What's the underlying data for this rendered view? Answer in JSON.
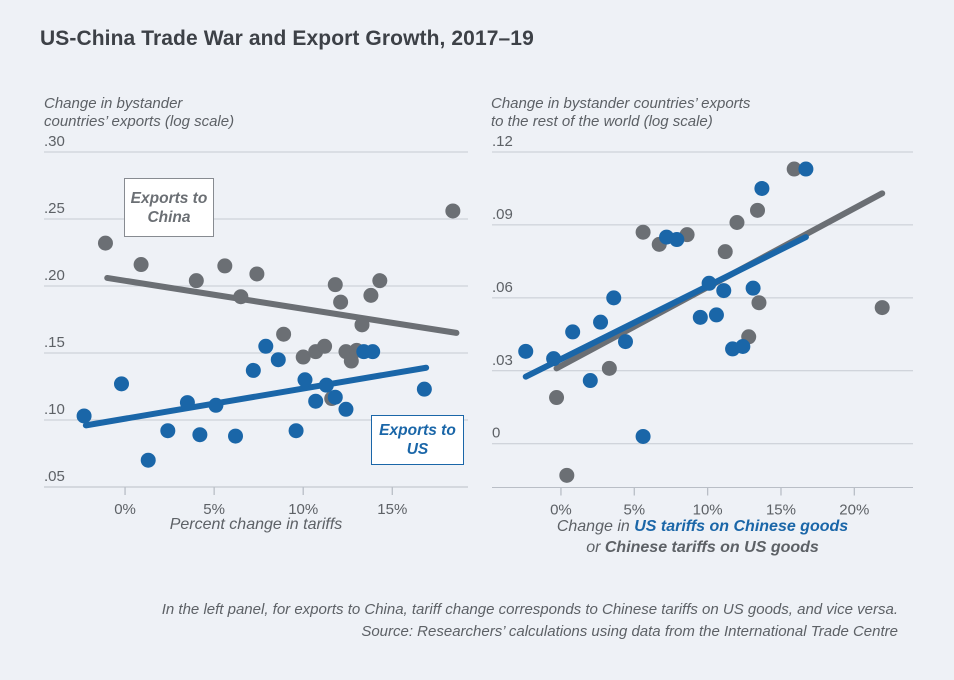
{
  "title": "US-China Trade War and Export Growth, 2017–19",
  "colors": {
    "blue": "#1a66a8",
    "gray": "#6b6f74",
    "grid": "#c6cbd2",
    "axis": "#b9bec6",
    "text": "#5d6166",
    "title": "#3d4147",
    "background": "#eef1f6",
    "annotation_background": "#ffffff"
  },
  "footer": {
    "line1": "In the left panel, for exports to China, tariff change corresponds to Chinese tariffs on US goods, and vice versa.",
    "line2": "Source: Researchers’ calculations using data from the International Trade Centre"
  },
  "chart_data": [
    {
      "type": "scatter",
      "panel": "left",
      "header": {
        "line1": "Change in bystander",
        "line2": "countries’ exports (log scale)"
      },
      "xlabel": "Percent change in tariffs",
      "ylabel": "Change in bystander countries’ exports (log scale)",
      "xlim": [
        -4.55,
        19.25
      ],
      "ylim": [
        0.05,
        0.3
      ],
      "grid": "horizontal",
      "legend_position": "annotation-boxes",
      "x_ticks": [
        {
          "label": "0%",
          "value": 0
        },
        {
          "label": "5%",
          "value": 5
        },
        {
          "label": "10%",
          "value": 10
        },
        {
          "label": "15%",
          "value": 15
        }
      ],
      "y_ticks": [
        {
          "label": ".05",
          "value": 0.05
        },
        {
          "label": ".10",
          "value": 0.1
        },
        {
          "label": ".15",
          "value": 0.15
        },
        {
          "label": ".20",
          "value": 0.2
        },
        {
          "label": ".25",
          "value": 0.25
        },
        {
          "label": ".30",
          "value": 0.3
        }
      ],
      "series": [
        {
          "name": "Exports to China",
          "color": "gray",
          "points": [
            [
              -1.1,
              0.232
            ],
            [
              0.9,
              0.216
            ],
            [
              4.0,
              0.204
            ],
            [
              5.6,
              0.215
            ],
            [
              6.5,
              0.192
            ],
            [
              7.4,
              0.209
            ],
            [
              8.9,
              0.164
            ],
            [
              10.0,
              0.147
            ],
            [
              10.7,
              0.151
            ],
            [
              11.2,
              0.155
            ],
            [
              11.6,
              0.116
            ],
            [
              11.8,
              0.201
            ],
            [
              12.1,
              0.188
            ],
            [
              12.4,
              0.151
            ],
            [
              12.7,
              0.144
            ],
            [
              13.0,
              0.152
            ],
            [
              13.3,
              0.171
            ],
            [
              13.8,
              0.193
            ],
            [
              14.3,
              0.204
            ],
            [
              18.4,
              0.256
            ]
          ],
          "trend": [
            [
              -1.0,
              0.206
            ],
            [
              18.6,
              0.165
            ]
          ]
        },
        {
          "name": "Exports to US",
          "color": "blue",
          "points": [
            [
              -2.3,
              0.103
            ],
            [
              -0.2,
              0.127
            ],
            [
              1.3,
              0.07
            ],
            [
              2.4,
              0.092
            ],
            [
              3.5,
              0.113
            ],
            [
              4.2,
              0.089
            ],
            [
              5.1,
              0.111
            ],
            [
              6.2,
              0.088
            ],
            [
              7.2,
              0.137
            ],
            [
              7.9,
              0.155
            ],
            [
              8.6,
              0.145
            ],
            [
              9.6,
              0.092
            ],
            [
              10.1,
              0.13
            ],
            [
              10.7,
              0.114
            ],
            [
              11.3,
              0.126
            ],
            [
              11.8,
              0.117
            ],
            [
              12.4,
              0.108
            ],
            [
              13.4,
              0.151
            ],
            [
              13.9,
              0.151
            ],
            [
              16.8,
              0.123
            ]
          ],
          "trend": [
            [
              -2.2,
              0.096
            ],
            [
              16.9,
              0.139
            ]
          ]
        }
      ]
    },
    {
      "type": "scatter",
      "panel": "right",
      "header": {
        "line1": "Change in bystander countries’ exports",
        "line2": "to the rest of the world (log scale)"
      },
      "xlabel_parts": {
        "prefix": "Change in ",
        "blue_bold": "US tariffs on Chinese goods",
        "line2_prefix": "or ",
        "gray_bold": "Chinese tariffs on US goods"
      },
      "ylabel": "Change in bystander countries’ exports to the rest of the world (log scale)",
      "xlim": [
        -4.7,
        24.0
      ],
      "ylim": [
        -0.018,
        0.12
      ],
      "grid": "horizontal",
      "x_ticks": [
        {
          "label": "0%",
          "value": 0
        },
        {
          "label": "5%",
          "value": 5
        },
        {
          "label": "10%",
          "value": 10
        },
        {
          "label": "15%",
          "value": 15
        },
        {
          "label": "20%",
          "value": 20
        }
      ],
      "y_ticks": [
        {
          "label": "0",
          "value": 0
        },
        {
          "label": ".03",
          "value": 0.03
        },
        {
          "label": ".06",
          "value": 0.06
        },
        {
          "label": ".09",
          "value": 0.09
        },
        {
          "label": ".12",
          "value": 0.12
        }
      ],
      "series": [
        {
          "name": "Chinese tariffs on US goods",
          "color": "gray",
          "points": [
            [
              -0.3,
              0.019
            ],
            [
              0.4,
              -0.013
            ],
            [
              3.3,
              0.031
            ],
            [
              5.6,
              0.087
            ],
            [
              6.7,
              0.082
            ],
            [
              8.6,
              0.086
            ],
            [
              11.2,
              0.079
            ],
            [
              12.0,
              0.091
            ],
            [
              12.8,
              0.044
            ],
            [
              13.4,
              0.096
            ],
            [
              13.5,
              0.058
            ],
            [
              15.9,
              0.113
            ],
            [
              21.9,
              0.056
            ]
          ],
          "trend": [
            [
              -0.3,
              0.031
            ],
            [
              21.9,
              0.103
            ]
          ]
        },
        {
          "name": "US tariffs on Chinese goods",
          "color": "blue",
          "points": [
            [
              -2.4,
              0.038
            ],
            [
              -0.5,
              0.035
            ],
            [
              0.8,
              0.046
            ],
            [
              2.0,
              0.026
            ],
            [
              2.7,
              0.05
            ],
            [
              3.6,
              0.06
            ],
            [
              4.4,
              0.042
            ],
            [
              5.6,
              0.003
            ],
            [
              7.2,
              0.085
            ],
            [
              7.9,
              0.084
            ],
            [
              9.5,
              0.052
            ],
            [
              10.1,
              0.066
            ],
            [
              10.6,
              0.053
            ],
            [
              11.1,
              0.063
            ],
            [
              11.7,
              0.039
            ],
            [
              12.4,
              0.04
            ],
            [
              13.1,
              0.064
            ],
            [
              13.7,
              0.105
            ],
            [
              16.7,
              0.113
            ]
          ],
          "trend": [
            [
              -2.4,
              0.0276
            ],
            [
              16.7,
              0.085
            ]
          ]
        }
      ]
    }
  ]
}
